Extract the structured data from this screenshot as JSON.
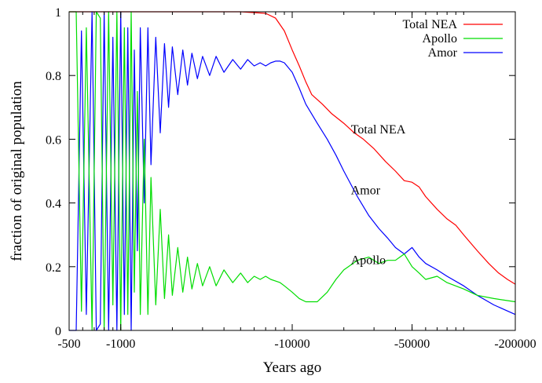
{
  "chart_data": {
    "type": "line",
    "xlabel": "Years ago",
    "ylabel": "fraction of original population",
    "x_scale": "log",
    "xlim": [
      -500,
      -200000
    ],
    "ylim": [
      0,
      1
    ],
    "x_ticks": [
      {
        "value": -500,
        "label": "-500"
      },
      {
        "value": -1000,
        "label": "-1000"
      },
      {
        "value": -10000,
        "label": "-10000"
      },
      {
        "value": -50000,
        "label": "-50000"
      },
      {
        "value": -200000,
        "label": "-200000"
      }
    ],
    "y_ticks": [
      {
        "value": 0,
        "label": "0"
      },
      {
        "value": 0.2,
        "label": "0.2"
      },
      {
        "value": 0.4,
        "label": "0.4"
      },
      {
        "value": 0.6,
        "label": "0.6"
      },
      {
        "value": 0.8,
        "label": "0.8"
      },
      {
        "value": 1,
        "label": "1"
      }
    ],
    "legend_position": "top-right",
    "series": [
      {
        "name": "Total NEA",
        "color": "#ff0000",
        "x": [
          -500,
          -2000,
          -5000,
          -7000,
          -8000,
          -9000,
          -10000,
          -11000,
          -12000,
          -13000,
          -15000,
          -17000,
          -20000,
          -23000,
          -26000,
          -30000,
          -35000,
          -40000,
          -45000,
          -50000,
          -55000,
          -60000,
          -70000,
          -80000,
          -90000,
          -100000,
          -120000,
          -140000,
          -160000,
          -180000,
          -200000
        ],
        "y": [
          1.0,
          1.0,
          1.0,
          0.995,
          0.98,
          0.94,
          0.88,
          0.83,
          0.78,
          0.74,
          0.71,
          0.68,
          0.65,
          0.62,
          0.6,
          0.57,
          0.53,
          0.5,
          0.47,
          0.465,
          0.45,
          0.42,
          0.38,
          0.35,
          0.33,
          0.3,
          0.25,
          0.21,
          0.18,
          0.16,
          0.145
        ]
      },
      {
        "name": "Amor",
        "color": "#0000ff",
        "x": [
          -500,
          -550,
          -590,
          -630,
          -680,
          -720,
          -760,
          -800,
          -850,
          -900,
          -950,
          -1000,
          -1050,
          -1100,
          -1150,
          -1200,
          -1250,
          -1300,
          -1370,
          -1440,
          -1500,
          -1600,
          -1700,
          -1800,
          -1900,
          -2000,
          -2150,
          -2300,
          -2450,
          -2600,
          -2800,
          -3000,
          -3300,
          -3600,
          -4000,
          -4500,
          -5000,
          -5500,
          -6000,
          -6500,
          -7000,
          -7500,
          -8000,
          -8500,
          -9000,
          -10000,
          -11000,
          -12000,
          -14000,
          -16000,
          -18000,
          -20000,
          -24000,
          -28000,
          -32000,
          -36000,
          -40000,
          -45000,
          -50000,
          -55000,
          -60000,
          -70000,
          -80000,
          -100000,
          -120000,
          -150000,
          -200000
        ],
        "y": [
          0.0,
          0.0,
          0.94,
          0.05,
          1.0,
          0.0,
          0.02,
          1.0,
          0.0,
          0.92,
          0.0,
          1.0,
          0.05,
          0.95,
          0.0,
          0.88,
          0.25,
          0.95,
          0.4,
          0.95,
          0.52,
          0.92,
          0.62,
          0.9,
          0.7,
          0.89,
          0.74,
          0.88,
          0.77,
          0.87,
          0.79,
          0.86,
          0.8,
          0.86,
          0.81,
          0.85,
          0.82,
          0.85,
          0.83,
          0.84,
          0.83,
          0.84,
          0.845,
          0.845,
          0.84,
          0.81,
          0.76,
          0.71,
          0.65,
          0.6,
          0.55,
          0.5,
          0.42,
          0.36,
          0.32,
          0.29,
          0.26,
          0.24,
          0.26,
          0.23,
          0.21,
          0.19,
          0.17,
          0.14,
          0.11,
          0.08,
          0.05
        ]
      },
      {
        "name": "Apollo",
        "color": "#00dd00",
        "x": [
          -500,
          -550,
          -590,
          -630,
          -680,
          -720,
          -760,
          -800,
          -850,
          -900,
          -950,
          -1000,
          -1050,
          -1100,
          -1150,
          -1200,
          -1250,
          -1300,
          -1370,
          -1440,
          -1500,
          -1600,
          -1700,
          -1800,
          -1900,
          -2000,
          -2150,
          -2300,
          -2450,
          -2600,
          -2800,
          -3000,
          -3300,
          -3600,
          -4000,
          -4500,
          -5000,
          -5500,
          -6000,
          -6500,
          -7000,
          -7500,
          -8000,
          -8500,
          -9000,
          -10000,
          -11000,
          -12000,
          -14000,
          -16000,
          -18000,
          -20000,
          -24000,
          -28000,
          -32000,
          -36000,
          -40000,
          -45000,
          -50000,
          -55000,
          -60000,
          -70000,
          -80000,
          -100000,
          -120000,
          -150000,
          -200000
        ],
        "y": [
          1.0,
          1.0,
          0.06,
          0.95,
          0.0,
          1.0,
          0.98,
          0.0,
          1.0,
          0.08,
          1.0,
          0.0,
          0.95,
          0.05,
          1.0,
          0.12,
          0.75,
          0.05,
          0.6,
          0.05,
          0.48,
          0.08,
          0.38,
          0.1,
          0.3,
          0.11,
          0.26,
          0.12,
          0.23,
          0.13,
          0.21,
          0.14,
          0.2,
          0.14,
          0.19,
          0.15,
          0.18,
          0.15,
          0.17,
          0.16,
          0.17,
          0.16,
          0.155,
          0.15,
          0.14,
          0.12,
          0.1,
          0.09,
          0.09,
          0.12,
          0.16,
          0.19,
          0.22,
          0.23,
          0.21,
          0.22,
          0.22,
          0.24,
          0.2,
          0.18,
          0.16,
          0.17,
          0.15,
          0.13,
          0.11,
          0.1,
          0.09
        ]
      }
    ],
    "annotations": [
      {
        "text": "Total NEA",
        "x": -22000,
        "y": 0.63
      },
      {
        "text": "Amor",
        "x": -22000,
        "y": 0.44
      },
      {
        "text": "Apollo",
        "x": -22000,
        "y": 0.22
      }
    ]
  }
}
